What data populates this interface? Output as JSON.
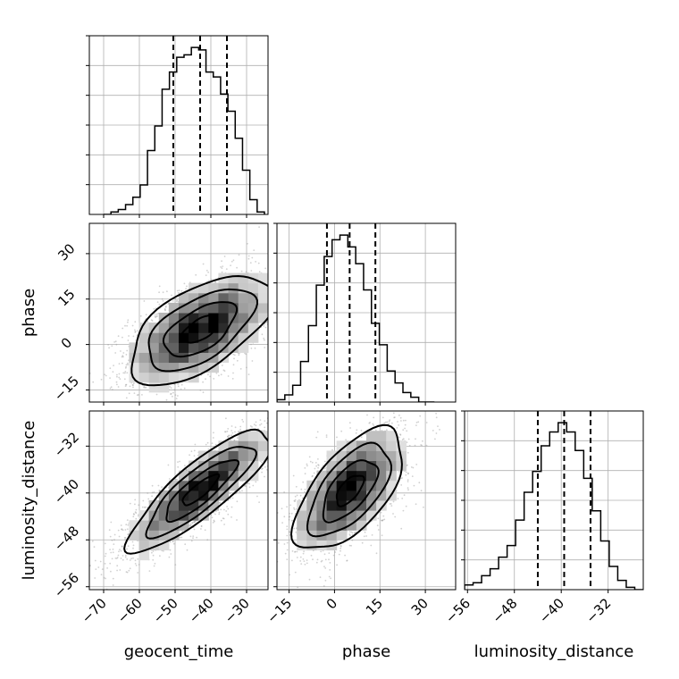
{
  "chart_data": {
    "type": "corner",
    "grid": true,
    "parameters": [
      {
        "id": "geocent_time",
        "label": "geocent_time",
        "range": [
          -74,
          -24
        ],
        "ticks": [
          -70,
          -60,
          -50,
          -40,
          -30
        ],
        "ticklabels": [
          "−70",
          "−60",
          "−50",
          "−40",
          "−30"
        ],
        "quantiles": [
          -50.5,
          -43,
          -35.5
        ]
      },
      {
        "id": "phase",
        "label": "phase",
        "range": [
          -19,
          40
        ],
        "ticks": [
          -15,
          0,
          15,
          30
        ],
        "ticklabels": [
          "−15",
          "0",
          "15",
          "30"
        ],
        "quantiles": [
          -2.5,
          5,
          13.5
        ]
      },
      {
        "id": "luminosity_distance",
        "label": "luminosity_distance",
        "range": [
          -56.5,
          -26
        ],
        "ticks": [
          -56,
          -48,
          -40,
          -32
        ],
        "ticklabels": [
          "−56",
          "−48",
          "−40",
          "−32"
        ],
        "quantiles": [
          -44,
          -39.5,
          -35
        ]
      }
    ],
    "histograms": [
      {
        "param": "geocent_time",
        "edges_range": [
          -70,
          -25
        ],
        "counts": [
          0,
          1,
          2,
          4,
          7,
          12,
          26,
          36,
          51,
          58,
          64,
          65,
          68,
          67,
          58,
          56,
          49,
          42,
          31,
          18,
          6,
          1
        ]
      },
      {
        "param": "phase",
        "edges_range": [
          -19,
          33
        ],
        "counts": [
          1,
          3,
          7,
          17,
          32,
          49,
          61,
          68,
          70,
          65,
          58,
          47,
          33,
          24,
          13,
          8,
          4,
          2,
          0,
          0
        ]
      },
      {
        "param": "luminosity_distance",
        "edges_range": [
          -56.5,
          -26
        ],
        "counts": [
          2,
          3,
          6,
          9,
          14,
          19,
          30,
          42,
          51,
          62,
          68,
          72,
          68,
          60,
          48,
          34,
          21,
          10,
          4,
          1,
          0
        ]
      }
    ],
    "scatter_panels": [
      {
        "x": "geocent_time",
        "y": "phase",
        "mean": [
          -43,
          5
        ],
        "sd": [
          10,
          9
        ],
        "rho": 0.58
      },
      {
        "x": "geocent_time",
        "y": "luminosity_distance",
        "mean": [
          -43,
          -39.5
        ],
        "sd": [
          10,
          5.2
        ],
        "rho": 0.85
      },
      {
        "x": "phase",
        "y": "luminosity_distance",
        "mean": [
          5,
          -39.5
        ],
        "sd": [
          9,
          5.2
        ],
        "rho": 0.62
      }
    ],
    "contour_levels": [
      "0.5",
      "1.0",
      "1.5",
      "2.0"
    ]
  }
}
